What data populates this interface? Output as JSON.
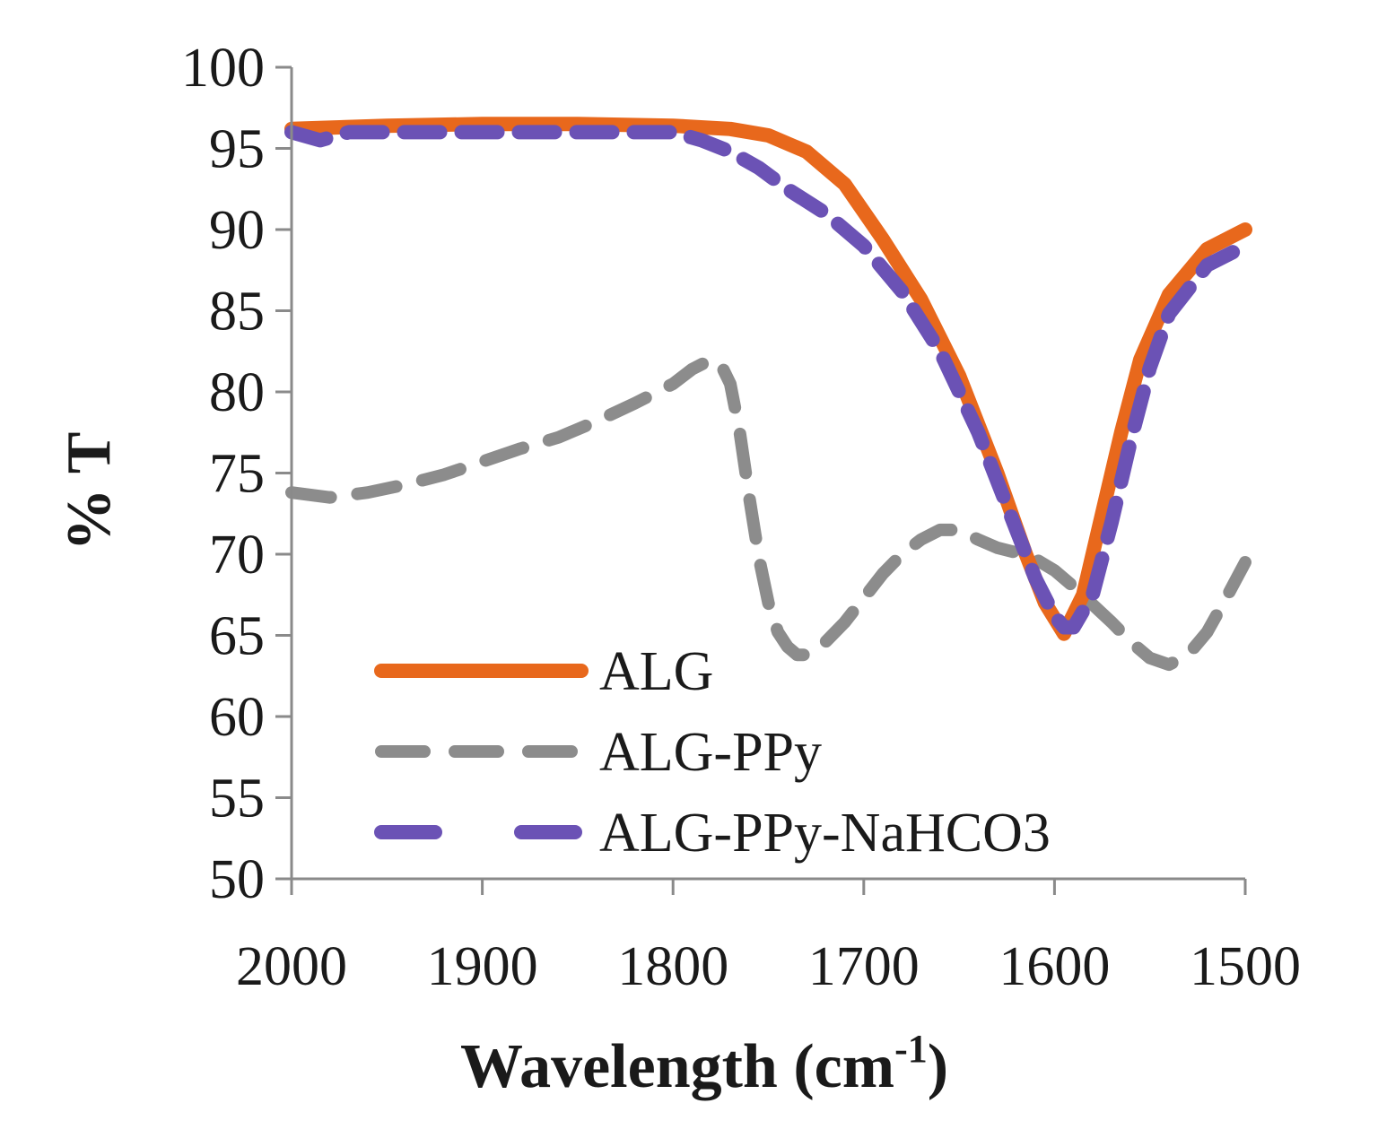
{
  "chart_data": {
    "type": "line",
    "title": "",
    "xlabel": "Wavelength (cm",
    "xlabel_superscript": "-1",
    "xlabel_close": ")",
    "ylabel": "% T",
    "xlim": [
      2000,
      1500
    ],
    "ylim": [
      50,
      100
    ],
    "x_ticks": [
      "2000",
      "1900",
      "1800",
      "1700",
      "1600",
      "1500"
    ],
    "y_ticks": [
      "100",
      "95",
      "90",
      "85",
      "80",
      "75",
      "70",
      "65",
      "60",
      "55",
      "50"
    ],
    "grid": false,
    "legend_position": "bottom-left",
    "series": [
      {
        "name": "ALG",
        "color": "#e8681c",
        "dash": "solid",
        "x": [
          2000,
          1950,
          1900,
          1850,
          1800,
          1770,
          1750,
          1730,
          1710,
          1690,
          1670,
          1650,
          1630,
          1615,
          1605,
          1595,
          1585,
          1575,
          1565,
          1555,
          1540,
          1520,
          1500
        ],
        "y": [
          96.2,
          96.4,
          96.5,
          96.5,
          96.4,
          96.2,
          95.8,
          94.8,
          92.8,
          89.4,
          85.7,
          81.0,
          75.0,
          70.0,
          67.0,
          65.1,
          67.5,
          72.5,
          77.5,
          82.0,
          86.0,
          88.8,
          90.0
        ]
      },
      {
        "name": "ALG-PPy",
        "color": "#8c8c8c",
        "dash": "long-dash",
        "x": [
          2000,
          1980,
          1960,
          1940,
          1920,
          1900,
          1880,
          1860,
          1840,
          1820,
          1800,
          1790,
          1780,
          1775,
          1770,
          1765,
          1760,
          1755,
          1750,
          1745,
          1740,
          1735,
          1730,
          1720,
          1710,
          1700,
          1690,
          1680,
          1670,
          1660,
          1650,
          1640,
          1630,
          1620,
          1610,
          1600,
          1590,
          1580,
          1570,
          1560,
          1550,
          1540,
          1530,
          1520,
          1510,
          1500
        ],
        "y": [
          73.8,
          73.5,
          73.8,
          74.3,
          74.9,
          75.7,
          76.5,
          77.2,
          78.2,
          79.3,
          80.5,
          81.4,
          82.0,
          81.7,
          80.5,
          77.5,
          73.5,
          69.8,
          67.0,
          65.2,
          64.3,
          63.8,
          63.8,
          64.6,
          65.8,
          67.3,
          68.8,
          70.0,
          70.9,
          71.5,
          71.5,
          70.9,
          70.4,
          70.1,
          69.7,
          69.0,
          68.0,
          66.9,
          65.8,
          64.6,
          63.6,
          63.2,
          63.8,
          65.2,
          67.3,
          69.5
        ]
      },
      {
        "name": "ALG-PPy-NaHCO3",
        "color": "#6b52b5",
        "dash": "dash",
        "x": [
          2000,
          1985,
          1970,
          1950,
          1900,
          1850,
          1820,
          1800,
          1785,
          1770,
          1755,
          1740,
          1720,
          1700,
          1680,
          1660,
          1640,
          1620,
          1610,
          1600,
          1595,
          1590,
          1580,
          1570,
          1560,
          1550,
          1540,
          1520,
          1500
        ],
        "y": [
          96.0,
          95.5,
          96.0,
          96.0,
          96.0,
          96.0,
          96.0,
          96.0,
          95.5,
          94.8,
          93.8,
          92.5,
          91.0,
          89.0,
          86.2,
          82.5,
          77.5,
          71.5,
          68.5,
          66.2,
          65.5,
          65.5,
          67.5,
          72.0,
          77.0,
          81.5,
          84.8,
          87.8,
          89.0
        ]
      }
    ]
  }
}
